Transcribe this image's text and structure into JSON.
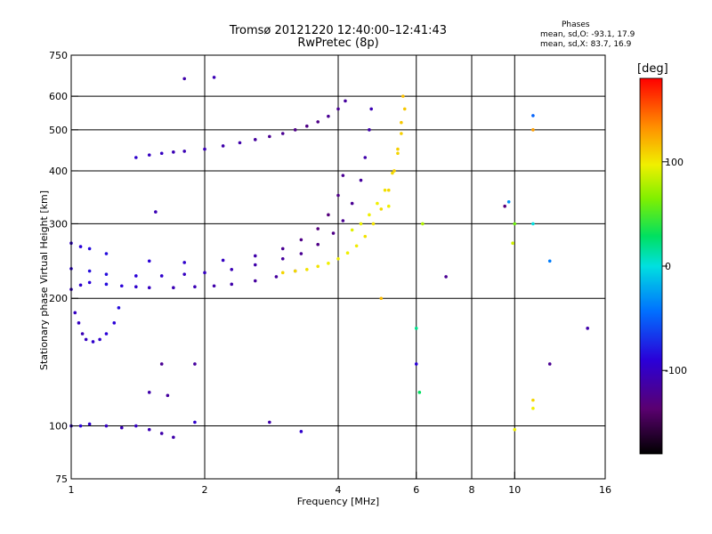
{
  "title": {
    "line1": "Tromsø 20121220 12:40:00–12:41:43",
    "line2": "RwPretec (8p)"
  },
  "phases_box": {
    "title": "Phases",
    "line_o": "mean, sd,O: -93.1, 17.9",
    "line_x": "mean, sd,X: 83.7, 16.9"
  },
  "colorbar": {
    "unit": "[deg]",
    "ticks": [
      {
        "v": 100,
        "label": "100"
      },
      {
        "v": 0,
        "label": "0"
      },
      {
        "v": -100,
        "label": "-100"
      }
    ],
    "range": [
      -180,
      180
    ]
  },
  "chart_data": {
    "type": "scatter",
    "title": "Tromsø 20121220 12:40:00–12:41:43",
    "subtitle": "RwPretec (8p)",
    "xlabel": "Frequency [MHz]",
    "ylabel": "Stationary phase Virtual Height [km]",
    "x_scale": "log",
    "y_scale": "log",
    "xlim": [
      1,
      16
    ],
    "ylim": [
      75,
      750
    ],
    "x_ticks": [
      {
        "v": 1,
        "label": "1"
      },
      {
        "v": 2,
        "label": "2"
      },
      {
        "v": 4,
        "label": "4"
      },
      {
        "v": 6,
        "label": "6"
      },
      {
        "v": 8,
        "label": "8"
      },
      {
        "v": 10,
        "label": "10"
      },
      {
        "v": 16,
        "label": "16"
      }
    ],
    "y_ticks": [
      {
        "v": 75,
        "label": "75"
      },
      {
        "v": 100,
        "label": "100"
      },
      {
        "v": 200,
        "label": "200"
      },
      {
        "v": 300,
        "label": "300"
      },
      {
        "v": 400,
        "label": "400"
      },
      {
        "v": 500,
        "label": "500"
      },
      {
        "v": 600,
        "label": "600"
      },
      {
        "v": 750,
        "label": "750"
      }
    ],
    "grid_x": [
      2,
      4,
      6,
      8,
      10
    ],
    "grid_y": [
      100,
      200,
      300,
      400,
      500,
      600
    ],
    "color_by": "phase [deg]",
    "series": [
      {
        "points": [
          [
            1.0,
            210,
            -100
          ],
          [
            1.05,
            215,
            -95
          ],
          [
            1.1,
            218,
            -90
          ],
          [
            1.2,
            216,
            -85
          ],
          [
            1.3,
            214,
            -90
          ],
          [
            1.4,
            213,
            -95
          ],
          [
            1.5,
            212,
            -100
          ],
          [
            1.7,
            212,
            -105
          ],
          [
            1.9,
            213,
            -105
          ],
          [
            2.1,
            214,
            -110
          ],
          [
            2.3,
            216,
            -110
          ],
          [
            2.6,
            220,
            -115
          ],
          [
            2.9,
            225,
            -115
          ],
          [
            3.2,
            232,
            -120
          ]
        ]
      },
      {
        "points": [
          [
            1.0,
            235,
            -90
          ],
          [
            1.1,
            232,
            -85
          ],
          [
            1.2,
            228,
            -85
          ],
          [
            1.4,
            226,
            -90
          ],
          [
            1.6,
            226,
            -95
          ],
          [
            1.8,
            228,
            -100
          ],
          [
            2.0,
            230,
            -100
          ],
          [
            2.3,
            234,
            -105
          ],
          [
            2.6,
            240,
            -110
          ],
          [
            3.0,
            248,
            -115
          ],
          [
            3.3,
            255,
            -120
          ],
          [
            3.6,
            268,
            -125
          ],
          [
            3.9,
            285,
            -125
          ],
          [
            4.1,
            305,
            -120
          ],
          [
            4.3,
            335,
            -120
          ],
          [
            4.5,
            380,
            -115
          ],
          [
            4.6,
            430,
            -110
          ],
          [
            4.7,
            500,
            -110
          ],
          [
            4.75,
            560,
            -105
          ]
        ]
      },
      {
        "points": [
          [
            1.0,
            270,
            -95
          ],
          [
            1.05,
            265,
            -90
          ],
          [
            1.1,
            262,
            -85
          ],
          [
            1.2,
            255,
            -85
          ],
          [
            1.5,
            245,
            -90
          ],
          [
            1.8,
            243,
            -95
          ],
          [
            2.2,
            246,
            -100
          ],
          [
            2.6,
            252,
            -110
          ],
          [
            3.0,
            262,
            -120
          ],
          [
            3.3,
            275,
            -125
          ],
          [
            3.6,
            292,
            -130
          ],
          [
            3.8,
            315,
            -130
          ],
          [
            4.0,
            350,
            -125
          ],
          [
            4.1,
            390,
            -120
          ]
        ]
      },
      {
        "points": [
          [
            3.0,
            230,
            110
          ],
          [
            3.2,
            232,
            108
          ],
          [
            3.4,
            234,
            105
          ],
          [
            3.6,
            238,
            105
          ],
          [
            3.8,
            242,
            100
          ],
          [
            4.0,
            248,
            100
          ],
          [
            4.2,
            256,
            100
          ],
          [
            4.4,
            266,
            102
          ],
          [
            4.6,
            280,
            105
          ],
          [
            4.8,
            300,
            105
          ],
          [
            5.0,
            325,
            108
          ],
          [
            5.2,
            360,
            110
          ],
          [
            5.35,
            400,
            112
          ],
          [
            5.45,
            450,
            112
          ],
          [
            5.55,
            520,
            115
          ],
          [
            5.6,
            600,
            118
          ]
        ]
      },
      {
        "points": [
          [
            4.3,
            290,
            95
          ],
          [
            4.5,
            300,
            98
          ],
          [
            4.7,
            315,
            100
          ],
          [
            4.9,
            335,
            100
          ],
          [
            5.1,
            360,
            105
          ],
          [
            5.3,
            395,
            108
          ],
          [
            5.45,
            440,
            110
          ],
          [
            5.55,
            490,
            112
          ],
          [
            5.65,
            560,
            115
          ]
        ]
      },
      {
        "points": [
          [
            1.4,
            430,
            -95
          ],
          [
            1.5,
            436,
            -100
          ],
          [
            1.6,
            440,
            -100
          ],
          [
            1.7,
            443,
            -105
          ],
          [
            1.8,
            445,
            -105
          ],
          [
            2.0,
            450,
            -105
          ],
          [
            2.2,
            458,
            -110
          ],
          [
            2.4,
            466,
            -110
          ],
          [
            2.6,
            474,
            -115
          ],
          [
            2.8,
            482,
            -120
          ],
          [
            3.0,
            490,
            -120
          ],
          [
            3.2,
            500,
            -125
          ],
          [
            3.4,
            510,
            -125
          ],
          [
            3.6,
            522,
            -125
          ],
          [
            3.8,
            538,
            -120
          ],
          [
            4.0,
            560,
            -120
          ],
          [
            4.15,
            585,
            -115
          ]
        ]
      },
      {
        "points": [
          [
            1.02,
            185,
            -100
          ],
          [
            1.04,
            175,
            -100
          ],
          [
            1.06,
            165,
            -105
          ],
          [
            1.08,
            160,
            -100
          ],
          [
            1.12,
            158,
            -95
          ],
          [
            1.16,
            160,
            -95
          ],
          [
            1.2,
            165,
            -90
          ],
          [
            1.25,
            175,
            -90
          ],
          [
            1.28,
            190,
            -85
          ]
        ]
      },
      {
        "points": [
          [
            1.0,
            100,
            -95
          ],
          [
            1.05,
            100,
            -90
          ],
          [
            1.1,
            101,
            -95
          ],
          [
            1.2,
            100,
            -100
          ],
          [
            1.3,
            99,
            -105
          ],
          [
            1.4,
            100,
            -100
          ],
          [
            1.5,
            98,
            -105
          ],
          [
            1.6,
            96,
            -110
          ],
          [
            1.7,
            94,
            -110
          ]
        ]
      },
      {
        "points": [
          [
            1.8,
            660,
            -110
          ],
          [
            2.1,
            665,
            -105
          ],
          [
            1.55,
            320,
            -105
          ],
          [
            1.6,
            140,
            -120
          ],
          [
            1.9,
            140,
            -115
          ],
          [
            1.5,
            120,
            -110
          ],
          [
            1.65,
            118,
            -115
          ],
          [
            6.2,
            300,
            80
          ],
          [
            6.0,
            140,
            -90
          ],
          [
            6.0,
            170,
            20
          ],
          [
            6.1,
            120,
            30
          ],
          [
            7.0,
            225,
            -120
          ],
          [
            9.5,
            330,
            -130
          ],
          [
            9.7,
            338,
            -30
          ],
          [
            9.9,
            270,
            90
          ],
          [
            10.0,
            300,
            60
          ],
          [
            10.0,
            98,
            100
          ],
          [
            11.0,
            540,
            -50
          ],
          [
            11.0,
            500,
            130
          ],
          [
            11.0,
            300,
            0
          ],
          [
            11.0,
            115,
            110
          ],
          [
            11.0,
            110,
            100
          ],
          [
            12.0,
            245,
            -40
          ],
          [
            12.0,
            140,
            -120
          ],
          [
            14.6,
            170,
            -110
          ],
          [
            5.2,
            330,
            100
          ],
          [
            5.0,
            200,
            120
          ],
          [
            1.9,
            102,
            -95
          ],
          [
            2.8,
            102,
            -110
          ],
          [
            3.3,
            97,
            -95
          ]
        ]
      }
    ]
  }
}
